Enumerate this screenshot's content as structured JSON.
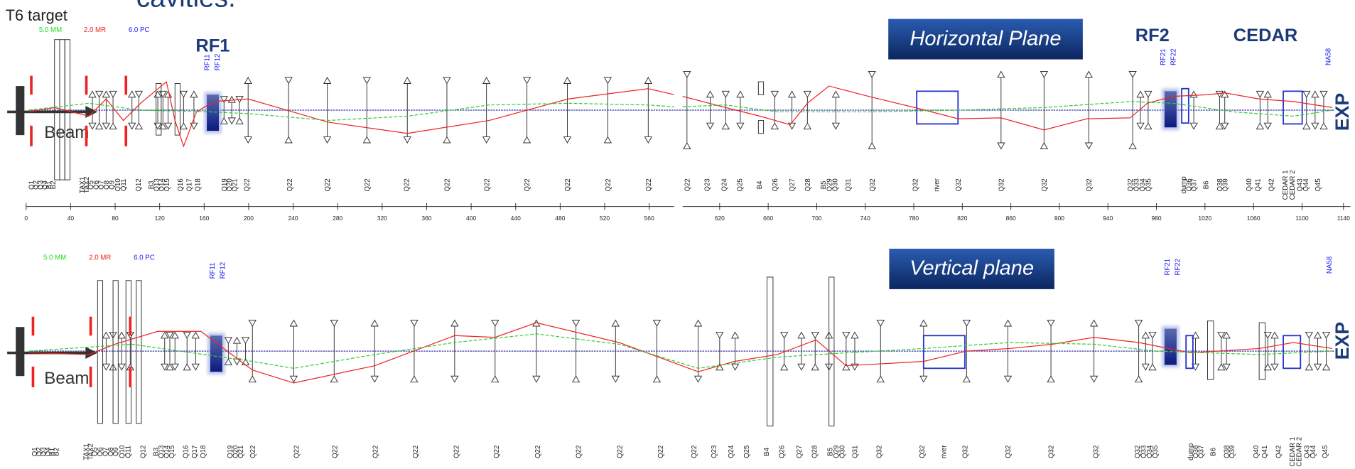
{
  "header": {
    "title": "cavities.",
    "target": "T6 target"
  },
  "panels": [
    {
      "scales": [
        {
          "text": "5.0 MM",
          "color": "#22dd22"
        },
        {
          "text": "2.0 MR",
          "color": "#ee2222"
        },
        {
          "text": "6.0 PC",
          "color": "#2222ee"
        }
      ],
      "plane": "Horizontal Plane",
      "rf1": "RF1",
      "rf2": "RF2",
      "cedar": "CEDAR",
      "rf1_cavities": [
        "RF11",
        "RF12"
      ],
      "rf2_cavities": [
        "RF21",
        "RF22"
      ],
      "endpoint": "NA58",
      "exp": "EXP",
      "beam": "Beam"
    },
    {
      "scales": [
        {
          "text": "5.0 MM",
          "color": "#22dd22"
        },
        {
          "text": "2.0 MR",
          "color": "#ee2222"
        },
        {
          "text": "6.0 PC",
          "color": "#2222ee"
        }
      ],
      "plane": "Vertical plane",
      "rf1_cavities": [
        "RF11",
        "RF12"
      ],
      "rf2_cavities": [
        "RF21",
        "RF22"
      ],
      "endpoint": "NA58",
      "exp": "EXP",
      "beam": "Beam"
    }
  ],
  "element_labels": [
    "Q1",
    "Q2",
    "Q3",
    "Q4",
    "B1",
    "B2",
    {
      "text": "TAX1",
      "color": "#ee2222"
    },
    {
      "text": "TAX2",
      "color": "#ee2222"
    },
    "Q5",
    "Q6",
    "Q7",
    "Q8",
    "Q9",
    "Q10",
    "Q11",
    "Q12",
    "B3",
    "Q13",
    "Q14",
    "Q15",
    "Q16",
    "Q17",
    "Q18",
    "Q19",
    "Q20",
    "Q21",
    "Q22",
    "Q22",
    "Q22",
    "Q22",
    "Q22",
    "Q22",
    "Q22",
    "Q22",
    "Q22",
    "Q22",
    "Q22",
    "Q22",
    "Q23",
    "Q24",
    "Q25",
    "B4",
    "Q26",
    "Q27",
    "Q28",
    "B5",
    "Q29",
    "Q30",
    "Q31",
    "Q32",
    "Q32",
    {
      "text": "river",
      "color": "#2222ee"
    },
    "Q32",
    "Q32",
    "Q32",
    "Q32",
    "Q32",
    "Q33",
    "Q34",
    "Q35",
    {
      "text": "dump",
      "color": "#2222ee"
    },
    "Q36",
    "Q37",
    "B6",
    "Q38",
    "Q39",
    "Q40",
    "Q41",
    "Q42",
    {
      "text": "CEDAR 1",
      "color": "#2222ee"
    },
    {
      "text": "CEDAR 2",
      "color": "#2222ee"
    },
    "Q43",
    "Q44",
    "Q45"
  ],
  "axis": {
    "left_ticks": [
      0,
      40,
      80,
      120,
      160,
      200,
      240,
      280,
      320,
      360,
      400,
      440,
      480,
      520,
      560
    ],
    "right_ticks": [
      620,
      660,
      700,
      740,
      780,
      820,
      860,
      900,
      940,
      980,
      1020,
      1060,
      1100,
      1140
    ]
  }
}
